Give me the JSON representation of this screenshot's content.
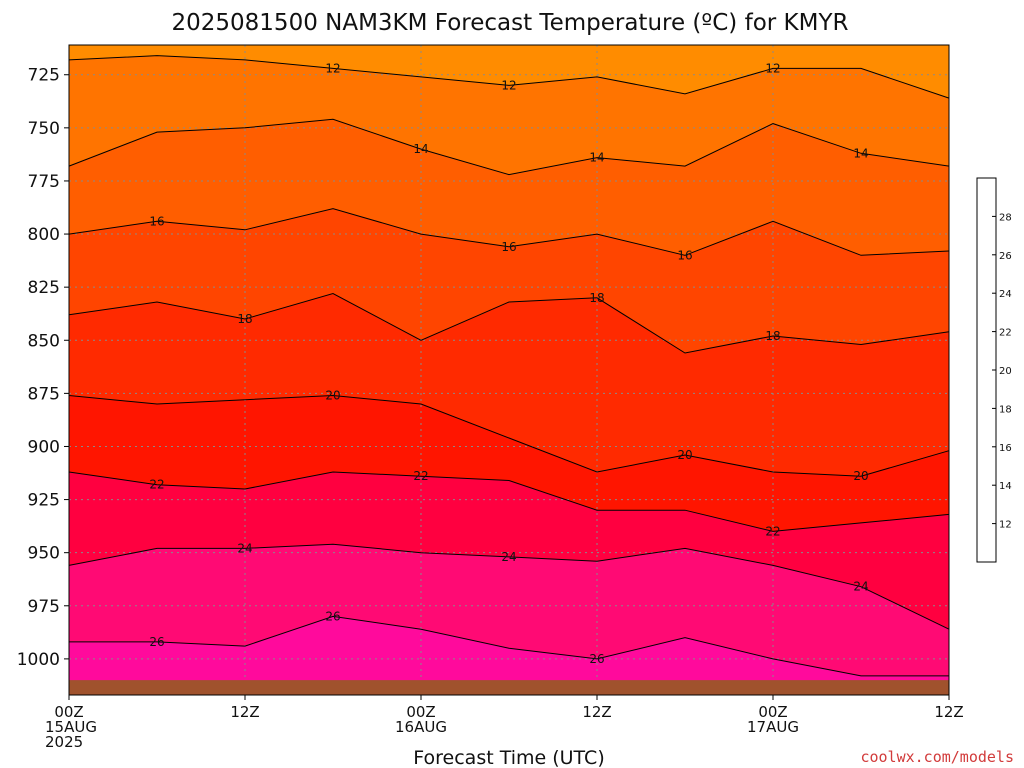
{
  "chart_data": {
    "type": "contour",
    "title": "2025081500 NAM3KM Forecast Temperature (ºC) for KMYR",
    "xlabel": "Forecast Time (UTC)",
    "ylabel": "",
    "credit": "coolwx.com/models",
    "x_ticks": [
      {
        "hours": 0,
        "lines": [
          "00Z",
          "15AUG",
          "2025"
        ]
      },
      {
        "hours": 12,
        "lines": [
          "12Z"
        ]
      },
      {
        "hours": 24,
        "lines": [
          "00Z",
          "16AUG"
        ]
      },
      {
        "hours": 36,
        "lines": [
          "12Z"
        ]
      },
      {
        "hours": 48,
        "lines": [
          "00Z",
          "17AUG"
        ]
      },
      {
        "hours": 60,
        "lines": [
          "12Z"
        ]
      }
    ],
    "xlim": [
      0,
      60
    ],
    "y_ticks": [
      725,
      750,
      775,
      800,
      825,
      850,
      875,
      900,
      925,
      950,
      975,
      1000
    ],
    "ylim": [
      1017,
      711
    ],
    "ground_level_hpa": 1010,
    "ground_color": "#a0522d",
    "contour_hours": [
      0,
      6,
      12,
      18,
      24,
      30,
      36,
      42,
      48,
      54,
      60
    ],
    "contours": [
      {
        "level": 12,
        "label": "12",
        "pressure": [
          718,
          716,
          718,
          722,
          726,
          730,
          726,
          734,
          722,
          722,
          736
        ]
      },
      {
        "level": 14,
        "label": "14",
        "pressure": [
          768,
          752,
          750,
          746,
          760,
          772,
          764,
          768,
          748,
          762,
          768
        ]
      },
      {
        "level": 16,
        "label": "16",
        "pressure": [
          800,
          794,
          798,
          788,
          800,
          806,
          800,
          810,
          794,
          810,
          808
        ]
      },
      {
        "level": 18,
        "label": "18",
        "pressure": [
          838,
          832,
          840,
          828,
          850,
          832,
          830,
          856,
          848,
          852,
          846
        ]
      },
      {
        "level": 20,
        "label": "20",
        "pressure": [
          876,
          880,
          878,
          876,
          880,
          896,
          912,
          904,
          912,
          914,
          902
        ]
      },
      {
        "level": 22,
        "label": "22",
        "pressure": [
          912,
          918,
          920,
          912,
          914,
          916,
          930,
          930,
          940,
          936,
          932
        ]
      },
      {
        "level": 24,
        "label": "24",
        "pressure": [
          956,
          948,
          948,
          946,
          950,
          952,
          954,
          948,
          956,
          966,
          986
        ]
      },
      {
        "level": 26,
        "label": "26",
        "pressure": [
          992,
          992,
          994,
          980,
          986,
          995,
          1000,
          990,
          1000,
          1008,
          1008
        ]
      }
    ],
    "band_colors": [
      "#ff8c00",
      "#ff7400",
      "#ff5e00",
      "#ff4500",
      "#ff2a00",
      "#ff1500",
      "#ff0040",
      "#ff0a74",
      "#ff0a9c"
    ],
    "colorbar": {
      "levels": [
        "12",
        "14",
        "16",
        "18",
        "20",
        "22",
        "24",
        "26",
        "28"
      ],
      "colors": [
        "#ff8c00",
        "#ff7400",
        "#ff5e00",
        "#ff4500",
        "#ff2a00",
        "#ff1500",
        "#ff0040",
        "#ff0a74",
        "#ff0a9c",
        "#ff14c0"
      ]
    }
  }
}
